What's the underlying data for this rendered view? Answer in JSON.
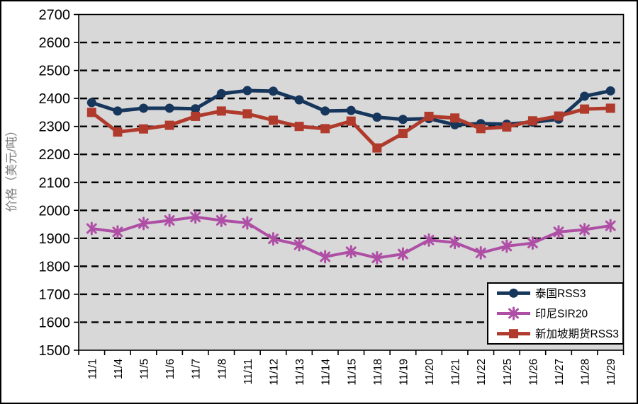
{
  "colors": {
    "frame_border": "#000000",
    "plot_bg": "#D8D8D8",
    "grid": "#000000",
    "axis": "#000000",
    "tick_label": "#000000",
    "y_title": "#7F7F7F",
    "legend_bg": "#FFFFFF",
    "legend_border": "#000000",
    "series_thailand": "#16365C",
    "series_indonesia": "#AE4FA5",
    "series_singapore": "#B03A2B"
  },
  "chart_data": {
    "type": "line",
    "title": "",
    "xlabel": "",
    "ylabel": "价格（美元/吨）",
    "ylim": [
      1500,
      2700
    ],
    "ytick_interval": 100,
    "yticks": [
      1500,
      1600,
      1700,
      1800,
      1900,
      2000,
      2100,
      2200,
      2300,
      2400,
      2500,
      2600,
      2700
    ],
    "grid": "horizontal dashed black lines on gray plot background",
    "legend_position": "inside bottom-right, white box with black border",
    "x_label_rotation": -90,
    "categories": [
      "11/1",
      "11/4",
      "11/5",
      "11/6",
      "11/7",
      "11/8",
      "11/11",
      "11/12",
      "11/13",
      "11/14",
      "11/15",
      "11/18",
      "11/19",
      "11/20",
      "11/21",
      "11/22",
      "11/25",
      "11/26",
      "11/27",
      "11/28",
      "11/29"
    ],
    "series": [
      {
        "id": "thailand-rss3",
        "name": "泰国RSS3",
        "marker": "circle",
        "color": "#16365C",
        "values": [
          2385,
          2355,
          2365,
          2365,
          2363,
          2417,
          2428,
          2426,
          2395,
          2355,
          2357,
          2333,
          2325,
          2328,
          2306,
          2310,
          2308,
          2315,
          2326,
          2408,
          2427
        ]
      },
      {
        "id": "indonesia-sir20",
        "name": "印尼SIR20",
        "marker": "asterisk",
        "color": "#AE4FA5",
        "values": [
          1935,
          1923,
          1953,
          1964,
          1976,
          1964,
          1955,
          1898,
          1877,
          1834,
          1852,
          1830,
          1844,
          1894,
          1885,
          1848,
          1872,
          1883,
          1923,
          1931,
          1945
        ]
      },
      {
        "id": "singapore-futures-rss3",
        "name": "新加坡期货RSS3",
        "marker": "square",
        "color": "#B03A2B",
        "values": [
          2350,
          2280,
          2291,
          2304,
          2336,
          2355,
          2345,
          2322,
          2300,
          2292,
          2319,
          2223,
          2275,
          2336,
          2330,
          2292,
          2298,
          2320,
          2337,
          2362,
          2365
        ]
      }
    ]
  }
}
